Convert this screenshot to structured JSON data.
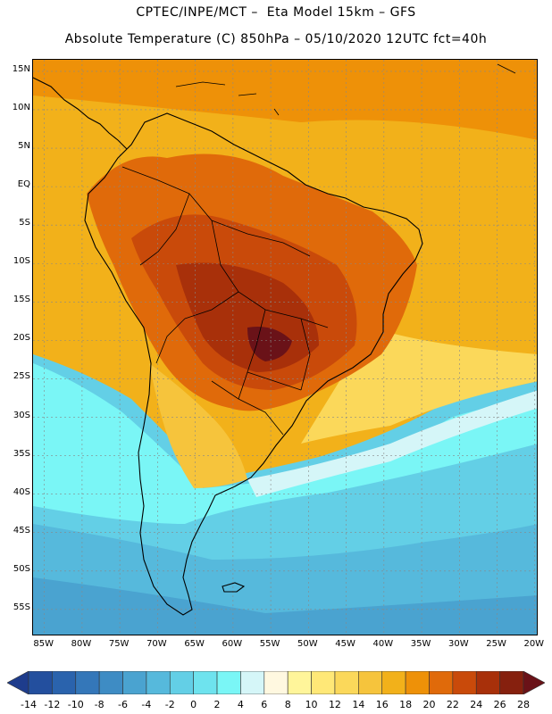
{
  "header": {
    "title_line1": "CPTEC/INPE/MCT –  Eta Model 15km – GFS",
    "title_line2": "Absolute Temperature (C) 850hPa – 05/10/2020 12UTC fct=40h"
  },
  "map": {
    "lat_labels": [
      "15N",
      "10N",
      "5N",
      "EQ",
      "5S",
      "10S",
      "15S",
      "20S",
      "25S",
      "30S",
      "35S",
      "40S",
      "45S",
      "50S",
      "55S"
    ],
    "lon_labels": [
      "85W",
      "80W",
      "75W",
      "70W",
      "65W",
      "60W",
      "55W",
      "50W",
      "45W",
      "40W",
      "35W",
      "30W",
      "25W",
      "20W"
    ],
    "lat_range": [
      16.5,
      -58.5
    ],
    "lon_range": [
      -86.5,
      -19.5
    ]
  },
  "colorbar": {
    "labels": [
      "-14",
      "-12",
      "-10",
      "-8",
      "-6",
      "-4",
      "-2",
      "0",
      "2",
      "4",
      "6",
      "8",
      "10",
      "12",
      "14",
      "16",
      "18",
      "20",
      "22",
      "24",
      "26",
      "28"
    ],
    "colors": [
      "#1e3c8c",
      "#234f9e",
      "#2a63ad",
      "#3477b9",
      "#3e8cc4",
      "#4aa3d0",
      "#56b9dc",
      "#63cfe6",
      "#6ee3ee",
      "#7af6f6",
      "#d5f6f8",
      "#fff8e0",
      "#fff59a",
      "#ffe877",
      "#fbd85a",
      "#f6c43c",
      "#f2b11a",
      "#ee9108",
      "#e06a0a",
      "#c94a0a",
      "#a8300a",
      "#86200e",
      "#6a1218"
    ]
  }
}
